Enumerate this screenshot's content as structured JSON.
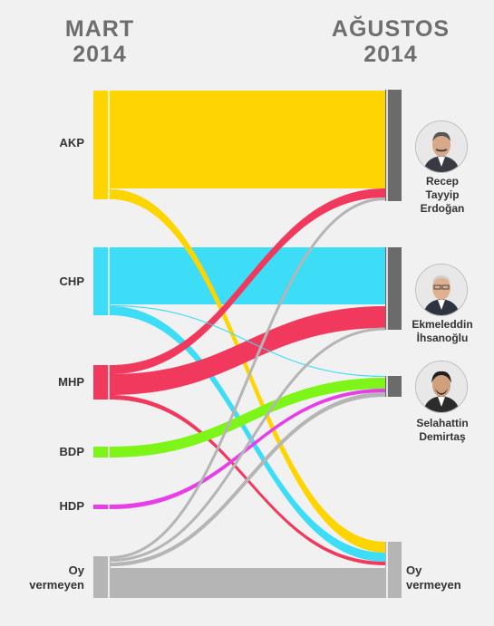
{
  "header": {
    "left": {
      "line1": "MART",
      "line2": "2014"
    },
    "right": {
      "line1": "AĞUSTOS",
      "line2": "2014"
    }
  },
  "sources": [
    {
      "id": "akp",
      "label": "AKP"
    },
    {
      "id": "chp",
      "label": "CHP"
    },
    {
      "id": "mhp",
      "label": "MHP"
    },
    {
      "id": "bdp",
      "label": "BDP"
    },
    {
      "id": "hdp",
      "label": "HDP"
    },
    {
      "id": "oy",
      "label": "Oy vermeyen",
      "line1": "Oy",
      "line2": "vermeyen"
    }
  ],
  "targets": [
    {
      "id": "erdogan",
      "lines": [
        "Recep",
        "Tayyip",
        "Erdoğan"
      ]
    },
    {
      "id": "ihsanoglu",
      "lines": [
        "Ekmeleddin",
        "İhsanoğlu"
      ]
    },
    {
      "id": "demirtas",
      "lines": [
        "Selahattin",
        "Demirtaş"
      ]
    },
    {
      "id": "oyv",
      "lines": [
        "Oy",
        "vermeyen"
      ]
    }
  ],
  "colors": {
    "akp": "#ffd500",
    "chp": "#3ddcf7",
    "mhp": "#f0395c",
    "bdp": "#7ef518",
    "hdp": "#e63fe8",
    "oy": "#b5b5b5",
    "target_bar": "#6b6b6b",
    "target_bar_oy": "#b5b5b5"
  },
  "icons": [
    "erdogan-portrait-icon",
    "ihsanoglu-portrait-icon",
    "demirtas-portrait-icon"
  ]
}
